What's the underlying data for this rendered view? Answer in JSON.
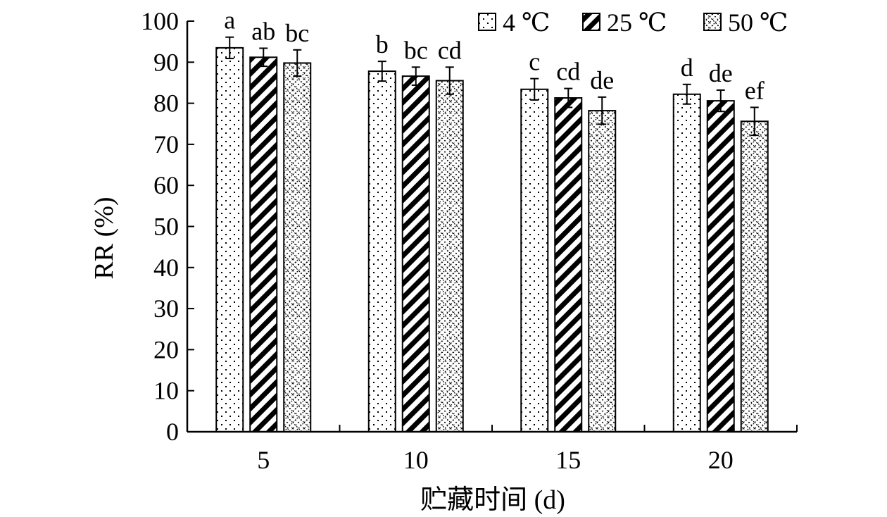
{
  "chart_data": {
    "type": "bar",
    "title": "",
    "xlabel": "贮藏时间 (d)",
    "ylabel": "RR (%)",
    "categories": [
      "5",
      "10",
      "15",
      "20"
    ],
    "ylim": [
      0,
      100
    ],
    "yticks": [
      0,
      10,
      20,
      30,
      40,
      50,
      60,
      70,
      80,
      90,
      100
    ],
    "grid": false,
    "legend_position": "top-right",
    "series": [
      {
        "name": "4 ℃",
        "pattern": "dots",
        "values": [
          93.5,
          87.8,
          83.4,
          82.2
        ],
        "errors": [
          2.6,
          2.4,
          2.6,
          2.4
        ],
        "labels": [
          "a",
          "b",
          "c",
          "d"
        ]
      },
      {
        "name": "25 ℃",
        "pattern": "diagonal-stripes",
        "values": [
          91.2,
          86.6,
          81.3,
          80.6
        ],
        "errors": [
          2.2,
          2.2,
          2.3,
          2.6
        ],
        "labels": [
          "ab",
          "bc",
          "cd",
          "de"
        ]
      },
      {
        "name": "50 ℃",
        "pattern": "crosshatch",
        "values": [
          89.8,
          85.5,
          78.2,
          75.6
        ],
        "errors": [
          3.2,
          3.3,
          3.3,
          3.4
        ],
        "labels": [
          "bc",
          "cd",
          "de",
          "ef"
        ]
      }
    ]
  }
}
